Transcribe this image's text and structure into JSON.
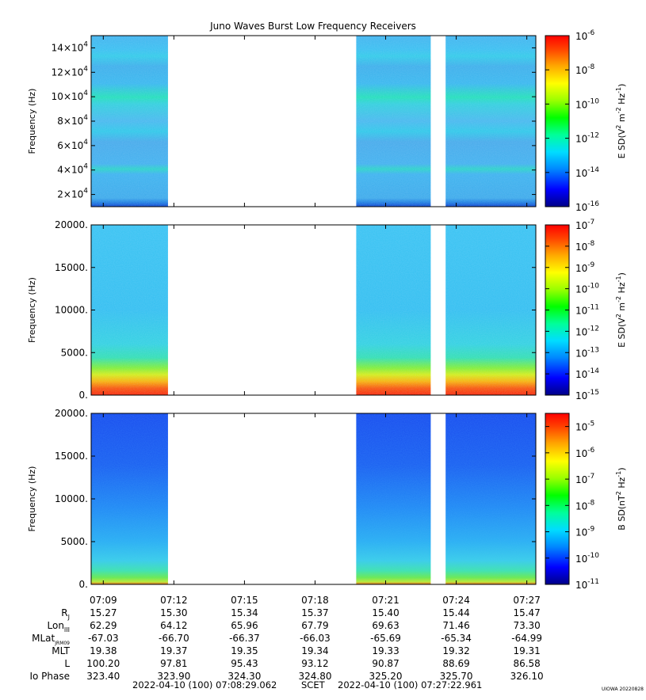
{
  "chart_data": {
    "title": "Juno Waves Burst Low Frequency Receivers",
    "type": "heatmap",
    "time_ticks": [
      "07:09",
      "07:12",
      "07:15",
      "07:18",
      "07:21",
      "07:24",
      "07:27"
    ],
    "data_segments": [
      [
        "07:08:29",
        "07:11:45"
      ],
      [
        "07:19:45",
        "07:22:55"
      ],
      [
        "07:23:33",
        "07:27:22"
      ]
    ],
    "panels": [
      {
        "ylabel": "Frequency (Hz)",
        "y_ticks": [
          {
            "mant": "2×10",
            "exp": "4",
            "v": 20000
          },
          {
            "mant": "4×10",
            "exp": "4",
            "v": 40000
          },
          {
            "mant": "6×10",
            "exp": "4",
            "v": 60000
          },
          {
            "mant": "8×10",
            "exp": "4",
            "v": 80000
          },
          {
            "mant": "10×10",
            "exp": "4",
            "v": 100000
          },
          {
            "mant": "12×10",
            "exp": "4",
            "v": 120000
          },
          {
            "mant": "14×10",
            "exp": "4",
            "v": 140000
          }
        ],
        "ylim": [
          10000,
          150000
        ],
        "colorbar_label": "E SD(V",
        "colorbar_ticks": [
          {
            "exp": "-6"
          },
          {
            "exp": "-8"
          },
          {
            "exp": "-10"
          },
          {
            "exp": "-12"
          },
          {
            "exp": "-14"
          },
          {
            "exp": "-16"
          }
        ],
        "clim": [
          -16,
          -6
        ],
        "palette": "e-hf"
      },
      {
        "ylabel": "Frequency (Hz)",
        "y_ticks": [
          {
            "mant": "0.",
            "v": 0
          },
          {
            "mant": "5000.",
            "v": 5000
          },
          {
            "mant": "10000.",
            "v": 10000
          },
          {
            "mant": "15000.",
            "v": 15000
          },
          {
            "mant": "20000.",
            "v": 20000
          }
        ],
        "ylim": [
          0,
          20000
        ],
        "colorbar_label": "E SD(V",
        "colorbar_ticks": [
          {
            "exp": "-7"
          },
          {
            "exp": "-8"
          },
          {
            "exp": "-9"
          },
          {
            "exp": "-10"
          },
          {
            "exp": "-11"
          },
          {
            "exp": "-12"
          },
          {
            "exp": "-13"
          },
          {
            "exp": "-14"
          },
          {
            "exp": "-15"
          }
        ],
        "clim": [
          -15,
          -7
        ],
        "palette": "e-lf"
      },
      {
        "ylabel": "Frequency (Hz)",
        "y_ticks": [
          {
            "mant": "0.",
            "v": 0
          },
          {
            "mant": "5000.",
            "v": 5000
          },
          {
            "mant": "10000.",
            "v": 10000
          },
          {
            "mant": "15000.",
            "v": 15000
          },
          {
            "mant": "20000.",
            "v": 20000
          }
        ],
        "ylim": [
          0,
          20000
        ],
        "colorbar_label": "B SD(nT",
        "colorbar_ticks": [
          {
            "exp": "-5"
          },
          {
            "exp": "-6"
          },
          {
            "exp": "-7"
          },
          {
            "exp": "-8"
          },
          {
            "exp": "-9"
          },
          {
            "exp": "-10"
          },
          {
            "exp": "-11"
          }
        ],
        "clim": [
          -11,
          -4.5
        ],
        "palette": "b-lf"
      }
    ],
    "ephemeris": [
      {
        "label": "R",
        "sub": "J",
        "values": [
          "15.27",
          "15.30",
          "15.34",
          "15.37",
          "15.40",
          "15.44",
          "15.47"
        ]
      },
      {
        "label": "Lon",
        "sub": "III",
        "values": [
          "62.29",
          "64.12",
          "65.96",
          "67.79",
          "69.63",
          "71.46",
          "73.30"
        ]
      },
      {
        "label": "MLat",
        "sub": "JRM09",
        "values": [
          "-67.03",
          "-66.70",
          "-66.37",
          "-66.03",
          "-65.69",
          "-65.34",
          "-64.99"
        ]
      },
      {
        "label": "MLT",
        "sub": "",
        "values": [
          "19.38",
          "19.37",
          "19.35",
          "19.34",
          "19.33",
          "19.32",
          "19.31"
        ]
      },
      {
        "label": "L",
        "sub": "",
        "values": [
          "100.20",
          "97.81",
          "95.43",
          "93.12",
          "90.87",
          "88.69",
          "86.58"
        ]
      },
      {
        "label": "Io Phase",
        "sub": "",
        "values": [
          "323.40",
          "323.90",
          "324.30",
          "324.80",
          "325.20",
          "325.70",
          "326.10"
        ]
      }
    ],
    "footer": {
      "start": "2022-04-10 (100) 07:08:29.062",
      "scet": "SCET",
      "end": "2022-04-10 (100) 07:27:22.961"
    },
    "credit": "UIOWA 20220828"
  }
}
